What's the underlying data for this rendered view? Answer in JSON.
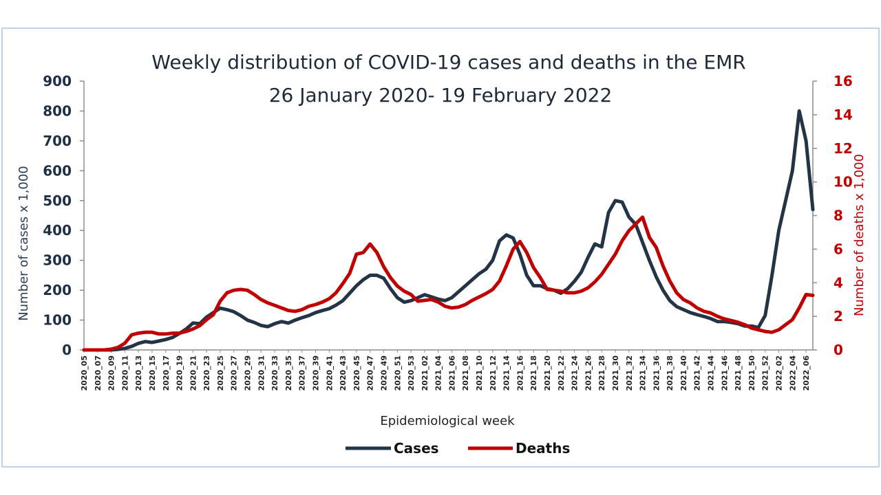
{
  "chart_data": {
    "type": "line",
    "title": "Weekly distribution of COVID-19 cases and deaths in the EMR",
    "subtitle": "26 January 2020- 19 February 2022",
    "xlabel": "Epidemiological week",
    "ylabel": "Number of cases x 1,000",
    "y2label": "Number of deaths x 1,000",
    "ylim": [
      0,
      900
    ],
    "y2lim": [
      0,
      16
    ],
    "yticks": [
      "0",
      "100",
      "200",
      "300",
      "400",
      "500",
      "600",
      "700",
      "800",
      "900"
    ],
    "y2ticks": [
      "0",
      "2",
      "4",
      "6",
      "8",
      "10",
      "12",
      "14",
      "16"
    ],
    "grid": false,
    "legend_position": "bottom",
    "colors": {
      "cases": "#243447",
      "deaths": "#c00000",
      "title": "#1f2a38",
      "frame": "#b9d3ea"
    },
    "x": [
      "2020_05",
      "2020_06",
      "2020_07",
      "2020_08",
      "2020_09",
      "2020_10",
      "2020_11",
      "2020_12",
      "2020_13",
      "2020_14",
      "2020_15",
      "2020_16",
      "2020_17",
      "2020_18",
      "2020_19",
      "2020_20",
      "2020_21",
      "2020_22",
      "2020_23",
      "2020_24",
      "2020_25",
      "2020_26",
      "2020_27",
      "2020_28",
      "2020_29",
      "2020_30",
      "2020_31",
      "2020_32",
      "2020_33",
      "2020_34",
      "2020_35",
      "2020_36",
      "2020_37",
      "2020_38",
      "2020_39",
      "2020_40",
      "2020_41",
      "2020_42",
      "2020_43",
      "2020_44",
      "2020_45",
      "2020_46",
      "2020_47",
      "2020_48",
      "2020_49",
      "2020_50",
      "2020_51",
      "2020_52",
      "2020_53",
      "2021_01",
      "2021_02",
      "2021_03",
      "2021_04",
      "2021_05",
      "2021_06",
      "2021_07",
      "2021_08",
      "2021_09",
      "2021_10",
      "2021_11",
      "2021_12",
      "2021_13",
      "2021_14",
      "2021_15",
      "2021_16",
      "2021_17",
      "2021_18",
      "2021_19",
      "2021_20",
      "2021_21",
      "2021_22",
      "2021_23",
      "2021_24",
      "2021_25",
      "2021_26",
      "2021_27",
      "2021_28",
      "2021_29",
      "2021_30",
      "2021_31",
      "2021_32",
      "2021_33",
      "2021_34",
      "2021_35",
      "2021_36",
      "2021_37",
      "2021_38",
      "2021_39",
      "2021_40",
      "2021_41",
      "2021_42",
      "2021_43",
      "2021_44",
      "2021_45",
      "2021_46",
      "2021_47",
      "2021_48",
      "2021_49",
      "2021_50",
      "2021_51",
      "2021_52",
      "2022_01",
      "2022_02",
      "2022_03",
      "2022_04",
      "2022_05",
      "2022_06",
      "2022_07"
    ],
    "x_tick_labels": [
      "2020_05",
      "2020_07",
      "2020_09",
      "2020_11",
      "2020_13",
      "2020_15",
      "2020_17",
      "2020_19",
      "2020_21",
      "2020_23",
      "2020_25",
      "2020_27",
      "2020_29",
      "2020_31",
      "2020_33",
      "2020_35",
      "2020_37",
      "2020_39",
      "2020_41",
      "2020_43",
      "2020_45",
      "2020_47",
      "2020_49",
      "2020_51",
      "2020_53",
      "2021_02",
      "2021_04",
      "2021_06",
      "2021_08",
      "2021_10",
      "2021_12",
      "2021_14",
      "2021_16",
      "2021_18",
      "2021_20",
      "2021_22",
      "2021_24",
      "2021_26",
      "2021_28",
      "2021_30",
      "2021_32",
      "2021_34",
      "2021_36",
      "2021_38",
      "2021_40",
      "2021_42",
      "2021_44",
      "2021_46",
      "2021_48",
      "2021_50",
      "2021_52",
      "2022_02",
      "2022_04",
      "2022_06"
    ],
    "series": [
      {
        "name": "Cases",
        "axis": "left",
        "values": [
          0,
          0,
          0,
          0,
          0,
          2,
          5,
          12,
          22,
          28,
          25,
          30,
          35,
          42,
          55,
          70,
          90,
          88,
          110,
          125,
          140,
          135,
          128,
          115,
          100,
          92,
          82,
          78,
          88,
          95,
          90,
          100,
          108,
          115,
          125,
          132,
          138,
          150,
          165,
          190,
          215,
          235,
          250,
          250,
          240,
          205,
          175,
          160,
          165,
          175,
          185,
          178,
          170,
          165,
          175,
          195,
          215,
          235,
          255,
          270,
          300,
          365,
          385,
          375,
          320,
          250,
          215,
          215,
          205,
          200,
          190,
          205,
          230,
          260,
          310,
          355,
          345,
          460,
          500,
          495,
          445,
          420,
          360,
          300,
          245,
          200,
          165,
          145,
          135,
          125,
          118,
          112,
          105,
          95,
          95,
          92,
          88,
          80,
          80,
          75,
          115,
          250,
          400,
          500,
          600,
          800,
          700,
          470
        ]
      },
      {
        "name": "Deaths",
        "axis": "right",
        "values": [
          0,
          0,
          0,
          0,
          0.05,
          0.15,
          0.4,
          0.9,
          1.0,
          1.05,
          1.05,
          0.95,
          0.95,
          1.0,
          1.0,
          1.1,
          1.25,
          1.45,
          1.8,
          2.1,
          2.9,
          3.4,
          3.55,
          3.6,
          3.55,
          3.3,
          3.0,
          2.8,
          2.65,
          2.5,
          2.35,
          2.3,
          2.4,
          2.6,
          2.7,
          2.85,
          3.05,
          3.4,
          3.95,
          4.55,
          5.7,
          5.8,
          6.3,
          5.8,
          4.95,
          4.3,
          3.8,
          3.5,
          3.3,
          2.9,
          2.95,
          3.0,
          2.85,
          2.6,
          2.5,
          2.55,
          2.7,
          2.95,
          3.15,
          3.35,
          3.6,
          4.1,
          5.0,
          6.0,
          6.45,
          5.8,
          4.9,
          4.3,
          3.6,
          3.55,
          3.5,
          3.4,
          3.4,
          3.5,
          3.7,
          4.05,
          4.5,
          5.1,
          5.7,
          6.5,
          7.1,
          7.5,
          7.9,
          6.7,
          6.1,
          5.0,
          4.1,
          3.4,
          3.0,
          2.8,
          2.5,
          2.3,
          2.2,
          2.0,
          1.85,
          1.75,
          1.65,
          1.5,
          1.3,
          1.2,
          1.1,
          1.05,
          1.2,
          1.5,
          1.8,
          2.5,
          3.3,
          3.25
        ]
      }
    ]
  }
}
